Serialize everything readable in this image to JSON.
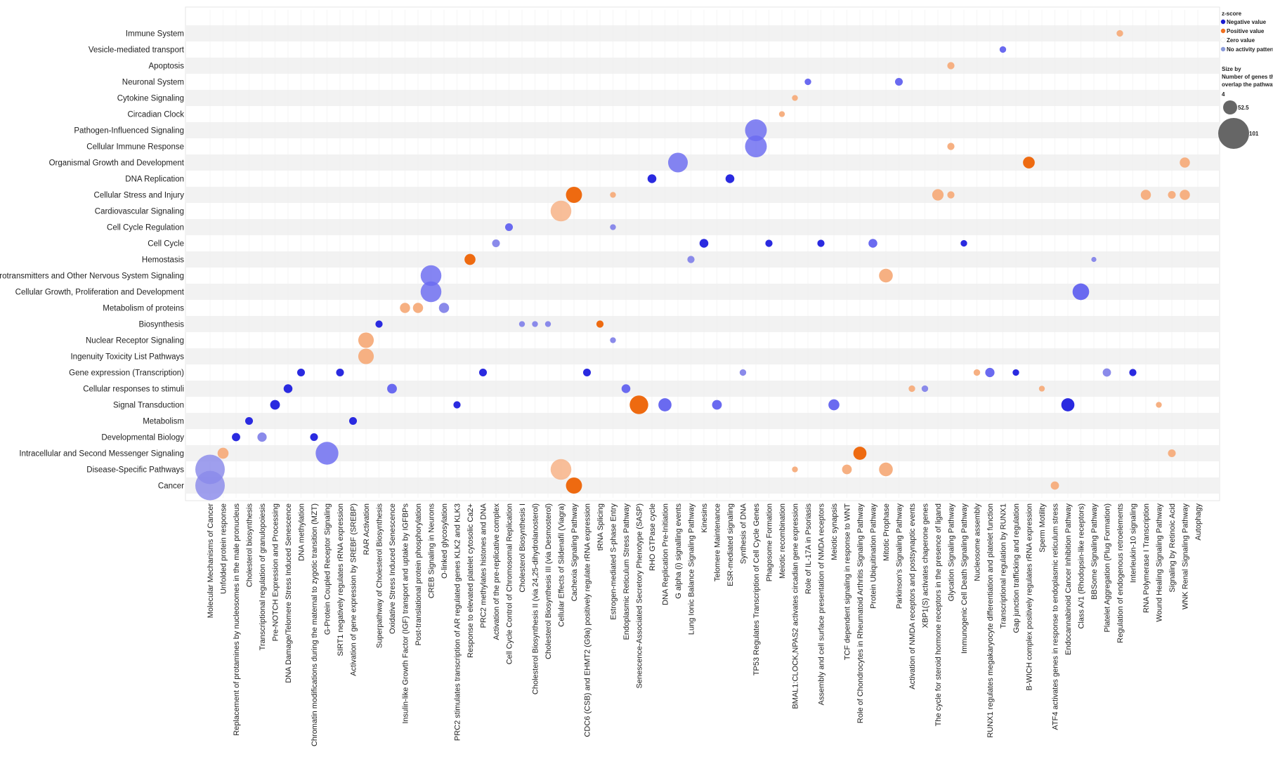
{
  "chart_data": {
    "type": "scatter",
    "title": "",
    "xlabel": "",
    "ylabel": "",
    "grid": true,
    "legend_position": "top-right",
    "colors": {
      "negative": "#4040ee",
      "positive": "#f07020",
      "zero": "#ffffff",
      "no_activity": "#8a8ae0",
      "band": "#f2f2f2",
      "size_legend": "#666666"
    },
    "legend": {
      "color_title": "z-score",
      "color_items": [
        "Negative value",
        "Positive value",
        "Zero value",
        "No activity pattern"
      ],
      "size_title_lines": [
        "Size by",
        "Number of genes that",
        "overlap the pathway"
      ],
      "size_items": [
        "4",
        "52.5",
        "101"
      ],
      "size_values": [
        4,
        52.5,
        101
      ]
    },
    "categories_y": [
      "Immune System",
      "Vesicle-mediated transport",
      "Apoptosis",
      "Neuronal System",
      "Cytokine Signaling",
      "Circadian Clock",
      "Pathogen-Influenced Signaling",
      "Cellular Immune Response",
      "Organismal Growth and Development",
      "DNA Replication",
      "Cellular Stress and Injury",
      "Cardiovascular Signaling",
      "Cell Cycle Regulation",
      "Cell Cycle",
      "Hemostasis",
      "Neurotransmitters and Other Nervous System Signaling",
      "Cellular Growth, Proliferation and Development",
      "Metabolism of proteins",
      "Biosynthesis",
      "Nuclear Receptor Signaling",
      "Ingenuity Toxicity List Pathways",
      "Gene expression (Transcription)",
      "Cellular responses to stimuli",
      "Signal Transduction",
      "Metabolism",
      "Developmental Biology",
      "Intracellular and Second Messenger Signaling",
      "Disease-Specific Pathways",
      "Cancer"
    ],
    "categories_x": [
      "Molecular Mechanisms of Cancer",
      "Unfolded protein response",
      "Replacement of protamines by nucleosomes in the male pronucleus",
      "Cholesterol biosynthesis",
      "Transcriptional regulation of granulopoiesis",
      "Pre-NOTCH Expression and Processing",
      "DNA Damage/Telomere Stress Induced Senescence",
      "DNA methylation",
      "Chromatin modifications during the maternal to zygotic transition (MZT)",
      "G-Protein Coupled Receptor Signaling",
      "SIRT1 negatively regulates rRNA expression",
      "Activation of gene expression by SREBF (SREBP)",
      "RAR Activation",
      "Superpathway of Cholesterol Biosynthesis",
      "Oxidative Stress Induced Senescence",
      "Insulin-like Growth Factor (IGF) transport and uptake by IGFBPs",
      "Post-translational protein phosphorylation",
      "CREB Signaling in Neurons",
      "O-linked glycosylation",
      "PRC2 stimulates transcription of AR regulated genes KLK2 and KLK3",
      "Response to elevated platelet cytosolic Ca2+",
      "PRC2 methylates histones and DNA",
      "Activation of the pre-replicative complex",
      "Cell Cycle Control of Chromosomal Replication",
      "Cholesterol Biosynthesis I",
      "Cholesterol Biosynthesis II (via 24,25-dihydrolanosterol)",
      "Cholesterol Biosynthesis III (via Desmosterol)",
      "Cellular Effects of Sildenafil (Viagra)",
      "Cachexia Signaling Pathway",
      "CDC6 (CSB) and EHMT2 (G9a) positively regulate rRNA expression",
      "tRNA Splicing",
      "Estrogen-mediated S-phase Entry",
      "Endoplasmic Reticulum Stress Pathway",
      "Senescence-Associated Secretory Phenotype (SASP)",
      "RHO GTPase cycle",
      "DNA Replication Pre-Initiation",
      "G alpha (i) signalling events",
      "Lung Ionic Balance Signaling Pathway",
      "Kinesins",
      "Telomere Maintenance",
      "ESR-mediated signaling",
      "Synthesis of DNA",
      "TP53 Regulates Transcription of Cell Cycle Genes",
      "Phagosome Formation",
      "Meiotic recombination",
      "BMAL1:CLOCK,NPAS2 activates circadian gene expression",
      "Role of IL-17A in Psoriasis",
      "Assembly and cell surface presentation of NMDA receptors",
      "Meiotic synapsis",
      "TCF dependent signaling in response to WNT",
      "Role of Chondrocytes in Rheumatoid Arthritis Signaling Pathway",
      "Protein Ubiquitination Pathway",
      "Mitotic Prophase",
      "Parkinson's Signaling Pathway",
      "Activation of NMDA receptors and postsynaptic events",
      "XBP1(S) activates chaperone genes",
      "The cycle for steroid hormone receptors in the presence of ligand",
      "Glycation Signaling Pathway",
      "Immunogenic Cell Death Signaling Pathway",
      "Nucleosome assembly",
      "RUNX1 regulates megakaryocyte differentiation and platelet function",
      "Transcriptional regulation by RUNX1",
      "Gap junction trafficking and regulation",
      "B-WICH complex positively regulates rRNA expression",
      "Sperm Motility",
      "ATF4 activates genes in response to endoplasmic reticulum stress",
      "Endocannabinoid Cancer Inhibition Pathway",
      "Class A/1 (Rhodopsin-like receptors)",
      "BBSome Signaling Pathway",
      "Platelet Aggregation (Plug Formation)",
      "Regulation of endogenous retroelements",
      "Interleukin-10 signaling",
      "RNA Polymerase I Transcription",
      "Wound Healing Signaling Pathway",
      "Signaling by Retinoic Acid",
      "WNK Renal Signaling Pathway",
      "Autophagy"
    ],
    "points": [
      {
        "x": 0,
        "y": 27,
        "size": 101,
        "z": "none"
      },
      {
        "x": 0,
        "y": 28,
        "size": 101,
        "z": "none"
      },
      {
        "x": 1,
        "y": 26,
        "size": 14,
        "z": "pos_light"
      },
      {
        "x": 2,
        "y": 25,
        "size": 8,
        "z": "neg"
      },
      {
        "x": 3,
        "y": 24,
        "size": 7,
        "z": "neg"
      },
      {
        "x": 4,
        "y": 25,
        "size": 10,
        "z": "none"
      },
      {
        "x": 5,
        "y": 23,
        "size": 11,
        "z": "neg"
      },
      {
        "x": 6,
        "y": 22,
        "size": 9,
        "z": "neg"
      },
      {
        "x": 7,
        "y": 21,
        "size": 7,
        "z": "neg"
      },
      {
        "x": 8,
        "y": 25,
        "size": 7,
        "z": "neg"
      },
      {
        "x": 9,
        "y": 26,
        "size": 60,
        "z": "neg_mid"
      },
      {
        "x": 10,
        "y": 21,
        "size": 7,
        "z": "neg"
      },
      {
        "x": 11,
        "y": 24,
        "size": 7,
        "z": "neg"
      },
      {
        "x": 12,
        "y": 19,
        "size": 28,
        "z": "pos_light"
      },
      {
        "x": 12,
        "y": 20,
        "size": 28,
        "z": "pos_light"
      },
      {
        "x": 13,
        "y": 18,
        "size": 6,
        "z": "neg"
      },
      {
        "x": 14,
        "y": 22,
        "size": 11,
        "z": "neg_mid"
      },
      {
        "x": 15,
        "y": 17,
        "size": 12,
        "z": "pos_light"
      },
      {
        "x": 16,
        "y": 17,
        "size": 12,
        "z": "pos_light"
      },
      {
        "x": 17,
        "y": 15,
        "size": 50,
        "z": "neg_mid"
      },
      {
        "x": 17,
        "y": 16,
        "size": 50,
        "z": "neg_mid"
      },
      {
        "x": 18,
        "y": 17,
        "size": 12,
        "z": "none"
      },
      {
        "x": 19,
        "y": 23,
        "size": 6,
        "z": "neg"
      },
      {
        "x": 20,
        "y": 14,
        "size": 14,
        "z": "pos"
      },
      {
        "x": 21,
        "y": 21,
        "size": 7,
        "z": "neg"
      },
      {
        "x": 22,
        "y": 13,
        "size": 7,
        "z": "none"
      },
      {
        "x": 23,
        "y": 12,
        "size": 7,
        "z": "neg_mid"
      },
      {
        "x": 24,
        "y": 18,
        "size": 4,
        "z": "none"
      },
      {
        "x": 25,
        "y": 18,
        "size": 4,
        "z": "none"
      },
      {
        "x": 26,
        "y": 18,
        "size": 4,
        "z": "none"
      },
      {
        "x": 27,
        "y": 11,
        "size": 50,
        "z": "pos_light"
      },
      {
        "x": 27,
        "y": 27,
        "size": 50,
        "z": "pos_light"
      },
      {
        "x": 28,
        "y": 10,
        "size": 30,
        "z": "pos"
      },
      {
        "x": 28,
        "y": 28,
        "size": 30,
        "z": "pos"
      },
      {
        "x": 29,
        "y": 21,
        "size": 7,
        "z": "neg"
      },
      {
        "x": 30,
        "y": 18,
        "size": 6,
        "z": "pos"
      },
      {
        "x": 31,
        "y": 10,
        "size": 4,
        "z": "pos_light"
      },
      {
        "x": 31,
        "y": 12,
        "size": 4,
        "z": "none"
      },
      {
        "x": 31,
        "y": 19,
        "size": 4,
        "z": "none"
      },
      {
        "x": 32,
        "y": 22,
        "size": 9,
        "z": "neg_mid"
      },
      {
        "x": 33,
        "y": 23,
        "size": 40,
        "z": "pos"
      },
      {
        "x": 34,
        "y": 9,
        "size": 9,
        "z": "neg"
      },
      {
        "x": 35,
        "y": 23,
        "size": 20,
        "z": "neg_mid"
      },
      {
        "x": 36,
        "y": 8,
        "size": 45,
        "z": "neg_mid"
      },
      {
        "x": 37,
        "y": 14,
        "size": 6,
        "z": "none"
      },
      {
        "x": 38,
        "y": 13,
        "size": 9,
        "z": "neg"
      },
      {
        "x": 39,
        "y": 23,
        "size": 11,
        "z": "neg_mid"
      },
      {
        "x": 40,
        "y": 9,
        "size": 9,
        "z": "neg"
      },
      {
        "x": 41,
        "y": 21,
        "size": 5,
        "z": "none"
      },
      {
        "x": 42,
        "y": 6,
        "size": 55,
        "z": "neg_mid"
      },
      {
        "x": 42,
        "y": 7,
        "size": 55,
        "z": "neg_mid"
      },
      {
        "x": 43,
        "y": 13,
        "size": 6,
        "z": "neg"
      },
      {
        "x": 44,
        "y": 5,
        "size": 4,
        "z": "pos_light"
      },
      {
        "x": 45,
        "y": 4,
        "size": 4,
        "z": "pos_light"
      },
      {
        "x": 45,
        "y": 27,
        "size": 4,
        "z": "pos_light"
      },
      {
        "x": 46,
        "y": 3,
        "size": 5,
        "z": "neg_mid"
      },
      {
        "x": 47,
        "y": 13,
        "size": 6,
        "z": "neg"
      },
      {
        "x": 48,
        "y": 23,
        "size": 14,
        "z": "neg_mid"
      },
      {
        "x": 49,
        "y": 27,
        "size": 11,
        "z": "pos_light"
      },
      {
        "x": 50,
        "y": 26,
        "size": 20,
        "z": "pos"
      },
      {
        "x": 51,
        "y": 13,
        "size": 9,
        "z": "neg_mid"
      },
      {
        "x": 52,
        "y": 15,
        "size": 22,
        "z": "pos_light"
      },
      {
        "x": 52,
        "y": 27,
        "size": 22,
        "z": "pos_light"
      },
      {
        "x": 53,
        "y": 3,
        "size": 7,
        "z": "neg_mid"
      },
      {
        "x": 54,
        "y": 22,
        "size": 5,
        "z": "pos_light"
      },
      {
        "x": 55,
        "y": 22,
        "size": 5,
        "z": "none"
      },
      {
        "x": 56,
        "y": 10,
        "size": 15,
        "z": "pos_light"
      },
      {
        "x": 57,
        "y": 2,
        "size": 6,
        "z": "pos_light"
      },
      {
        "x": 57,
        "y": 7,
        "size": 6,
        "z": "pos_light"
      },
      {
        "x": 57,
        "y": 10,
        "size": 6,
        "z": "pos_light"
      },
      {
        "x": 58,
        "y": 13,
        "size": 5,
        "z": "neg"
      },
      {
        "x": 59,
        "y": 21,
        "size": 5,
        "z": "pos_light"
      },
      {
        "x": 60,
        "y": 21,
        "size": 10,
        "z": "neg_mid"
      },
      {
        "x": 61,
        "y": 1,
        "size": 5,
        "z": "neg_mid"
      },
      {
        "x": 62,
        "y": 21,
        "size": 5,
        "z": "neg"
      },
      {
        "x": 63,
        "y": 8,
        "size": 16,
        "z": "pos"
      },
      {
        "x": 64,
        "y": 22,
        "size": 4,
        "z": "pos_light"
      },
      {
        "x": 65,
        "y": 28,
        "size": 8,
        "z": "pos_light"
      },
      {
        "x": 66,
        "y": 23,
        "size": 20,
        "z": "neg"
      },
      {
        "x": 67,
        "y": 16,
        "size": 32,
        "z": "neg_mid"
      },
      {
        "x": 68,
        "y": 14,
        "size": 3,
        "z": "none"
      },
      {
        "x": 69,
        "y": 21,
        "size": 8,
        "z": "none"
      },
      {
        "x": 70,
        "y": 0,
        "size": 5,
        "z": "pos_light"
      },
      {
        "x": 71,
        "y": 21,
        "size": 6,
        "z": "neg"
      },
      {
        "x": 72,
        "y": 10,
        "size": 12,
        "z": "pos_light"
      },
      {
        "x": 73,
        "y": 23,
        "size": 4,
        "z": "pos_light"
      },
      {
        "x": 74,
        "y": 10,
        "size": 7,
        "z": "pos_light"
      },
      {
        "x": 74,
        "y": 26,
        "size": 7,
        "z": "pos_light"
      },
      {
        "x": 75,
        "y": 8,
        "size": 12,
        "z": "pos_light"
      },
      {
        "x": 75,
        "y": 10,
        "size": 12,
        "z": "pos_light"
      }
    ]
  }
}
